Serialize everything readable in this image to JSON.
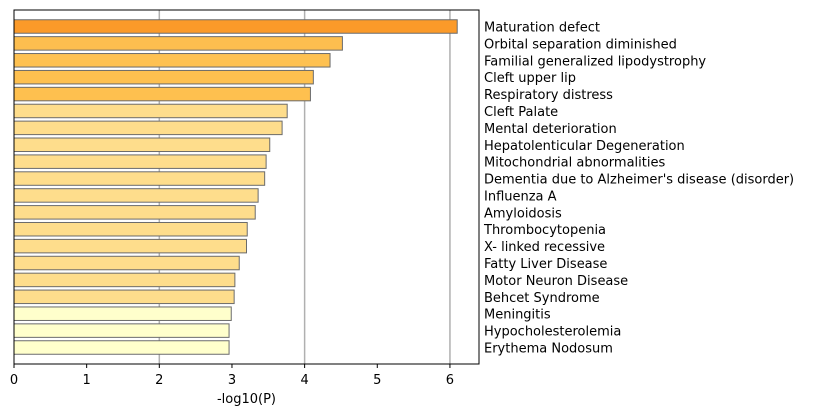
{
  "chart_data": {
    "type": "bar",
    "orientation": "horizontal",
    "xlabel": "-log10(P)",
    "ylabel": "",
    "xlim": [
      0,
      6.4
    ],
    "x_ticks": [
      0,
      1,
      2,
      3,
      4,
      5,
      6
    ],
    "grid": "vertical lines at x = 2, 4, 6",
    "legend": "none",
    "label_side": "right",
    "categories": [
      "Maturation defect",
      "Orbital separation diminished",
      "Familial generalized lipodystrophy",
      "Cleft upper lip",
      "Respiratory distress",
      "Cleft Palate",
      "Mental deterioration",
      "Hepatolenticular Degeneration",
      "Mitochondrial abnormalities",
      "Dementia due to Alzheimer's disease (disorder)",
      "Influenza A",
      "Amyloidosis",
      "Thrombocytopenia",
      "X- linked recessive",
      "Fatty Liver Disease",
      "Motor Neuron Disease",
      "Behcet Syndrome",
      "Meningitis",
      "Hypocholesterolemia",
      "Erythema Nodosum"
    ],
    "values": [
      6.1,
      4.52,
      4.35,
      4.12,
      4.08,
      3.76,
      3.69,
      3.52,
      3.47,
      3.45,
      3.36,
      3.32,
      3.21,
      3.2,
      3.1,
      3.04,
      3.03,
      2.99,
      2.96,
      2.96
    ],
    "colors": [
      "#fb9a29",
      "#fdbe4f",
      "#fec151",
      "#fec04f",
      "#fec04f",
      "#fedd8c",
      "#fedd8c",
      "#fedd8c",
      "#fedd8c",
      "#fedd8c",
      "#fedd8c",
      "#fedd8c",
      "#fedd8c",
      "#fedd8c",
      "#fedd8c",
      "#fedd8c",
      "#fedd8c",
      "#ffffcc",
      "#ffffcc",
      "#ffffcc"
    ],
    "bar_edge_color": "#6b6b6b",
    "grid_color": "#b0b0b0"
  }
}
